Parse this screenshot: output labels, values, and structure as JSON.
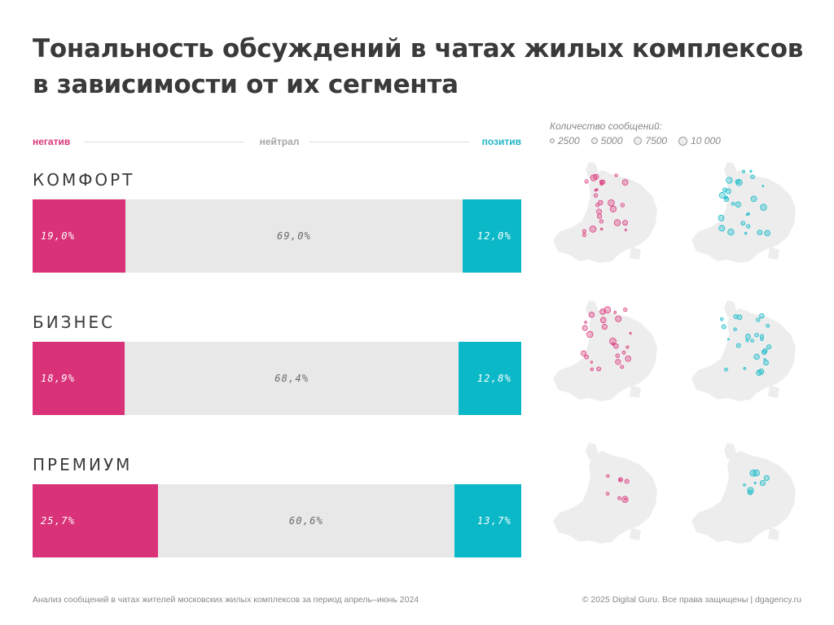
{
  "title": "Тональность обсуждений в чатах жилых комплексов в зависимости от их сегмента",
  "scale_legend": {
    "negative": "негатив",
    "neutral": "нейтрал",
    "positive": "позитив"
  },
  "bubble_legend": {
    "caption": "Количество сообщений:",
    "items": [
      {
        "label": "2500",
        "value": 2500
      },
      {
        "label": "5000",
        "value": 5000
      },
      {
        "label": "7500",
        "value": 7500
      },
      {
        "label": "10 000",
        "value": 10000
      }
    ]
  },
  "colors": {
    "negative": "#da3278",
    "neutral": "#e8e8e8",
    "positive": "#0ab8c7",
    "map_land": "#ededed"
  },
  "chart_data": {
    "type": "bar",
    "orientation": "horizontal-stacked-100",
    "categories": [
      "КОМФОРТ",
      "БИЗНЕС",
      "ПРЕМИУМ"
    ],
    "series": [
      {
        "name": "негатив",
        "values": [
          19.0,
          18.9,
          25.7
        ],
        "labels": [
          "19,0%",
          "18,9%",
          "25,7%"
        ]
      },
      {
        "name": "нейтрал",
        "values": [
          69.0,
          68.4,
          60.6
        ],
        "labels": [
          "69,0%",
          "68,4%",
          "60,6%"
        ]
      },
      {
        "name": "позитив",
        "values": [
          12.0,
          12.8,
          13.7
        ],
        "labels": [
          "12,0%",
          "12,8%",
          "13,7%"
        ]
      }
    ],
    "xlim": [
      0,
      100
    ],
    "legend_position": "top"
  },
  "footer": {
    "source": "Анализ сообщений в чатах жителей московских жилых комплексов за период апрель–июнь 2024",
    "copyright": "© 2025 Digital Guru. Все права защищены | dgagency.ru"
  }
}
